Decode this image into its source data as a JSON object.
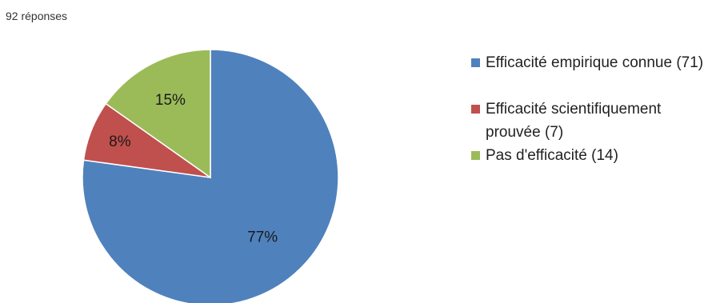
{
  "header": {
    "responses": "92 réponses"
  },
  "chart_data": {
    "type": "pie",
    "title": "",
    "categories": [
      "Efficacité empirique connue (71)",
      "Efficacité scientifiquement prouvée (7)",
      "Pas d'efficacité (14)"
    ],
    "values": [
      71,
      7,
      14
    ],
    "percent_labels": [
      "77%",
      "8%",
      "15%"
    ],
    "colors": [
      "#4F81BD",
      "#C0504D",
      "#9BBB59"
    ],
    "legend_placement": "right"
  }
}
